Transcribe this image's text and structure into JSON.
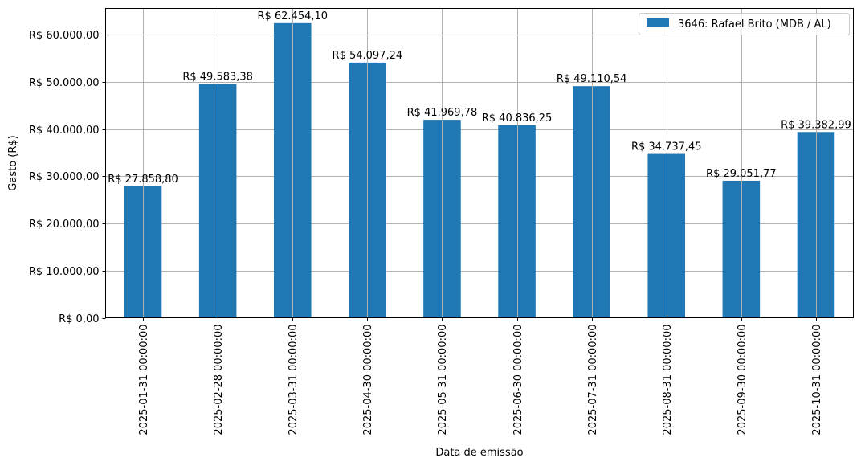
{
  "chart_data": {
    "type": "bar",
    "title": "",
    "xlabel": "Data de emissão",
    "ylabel": "Gasto (R$)",
    "ylim": [
      0,
      65576.8
    ],
    "grid": true,
    "legend_position": "upper right",
    "categories": [
      "2025-01-31 00:00:00",
      "2025-02-28 00:00:00",
      "2025-03-31 00:00:00",
      "2025-04-30 00:00:00",
      "2025-05-31 00:00:00",
      "2025-06-30 00:00:00",
      "2025-07-31 00:00:00",
      "2025-08-31 00:00:00",
      "2025-09-30 00:00:00",
      "2025-10-31 00:00:00"
    ],
    "series": [
      {
        "name": "3646: Rafael Brito (MDB / AL)",
        "color": "#1f77b4",
        "values": [
          27858.8,
          49583.38,
          62454.1,
          54097.24,
          41969.78,
          40836.25,
          49110.54,
          34737.45,
          29051.77,
          39382.99
        ],
        "labels": [
          "R$ 27.858,80",
          "R$ 49.583,38",
          "R$ 62.454,10",
          "R$ 54.097,24",
          "R$ 41.969,78",
          "R$ 40.836,25",
          "R$ 49.110,54",
          "R$ 34.737,45",
          "R$ 29.051,77",
          "R$ 39.382,99"
        ]
      }
    ],
    "yticks": [
      0,
      10000,
      20000,
      30000,
      40000,
      50000,
      60000
    ],
    "ytick_labels": [
      "R$ 0,00",
      "R$ 10.000,00",
      "R$ 20.000,00",
      "R$ 30.000,00",
      "R$ 40.000,00",
      "R$ 50.000,00",
      "R$ 60.000,00"
    ]
  },
  "colors": {
    "bar": "#1f77b4",
    "grid": "#b0b0b0",
    "axis": "#000000"
  }
}
